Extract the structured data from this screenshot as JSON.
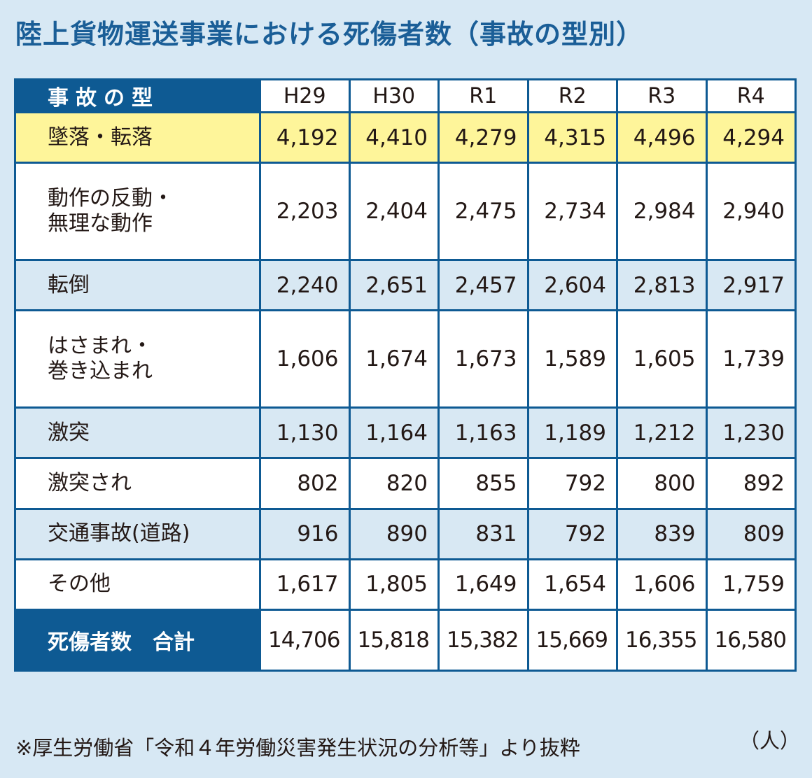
{
  "title": "陸上貨物運送事業における死傷者数（事故の型別）",
  "table": {
    "corner_header": "事故の型",
    "years": [
      "H29",
      "H30",
      "R1",
      "R2",
      "R3",
      "R4"
    ],
    "rows": [
      {
        "label": "墜落・転落",
        "values": [
          "4,192",
          "4,410",
          "4,279",
          "4,315",
          "4,496",
          "4,294"
        ],
        "highlight": true
      },
      {
        "label": "動作の反動・\n無理な動作",
        "values": [
          "2,203",
          "2,404",
          "2,475",
          "2,734",
          "2,984",
          "2,940"
        ]
      },
      {
        "label": "転倒",
        "values": [
          "2,240",
          "2,651",
          "2,457",
          "2,604",
          "2,813",
          "2,917"
        ]
      },
      {
        "label": "はさまれ・\n巻き込まれ",
        "values": [
          "1,606",
          "1,674",
          "1,673",
          "1,589",
          "1,605",
          "1,739"
        ]
      },
      {
        "label": "激突",
        "values": [
          "1,130",
          "1,164",
          "1,163",
          "1,189",
          "1,212",
          "1,230"
        ]
      },
      {
        "label": "激突され",
        "values": [
          "802",
          "820",
          "855",
          "792",
          "800",
          "892"
        ]
      },
      {
        "label": "交通事故(道路)",
        "values": [
          "916",
          "890",
          "831",
          "792",
          "839",
          "809"
        ]
      },
      {
        "label": "その他",
        "values": [
          "1,617",
          "1,805",
          "1,649",
          "1,654",
          "1,606",
          "1,759"
        ]
      }
    ],
    "total": {
      "label": "死傷者数　合計",
      "values": [
        "14,706",
        "15,818",
        "15,382",
        "15,669",
        "16,355",
        "16,580"
      ]
    }
  },
  "note": "※厚生労働省「令和４年労働災害発生状況の分析等」より抜粋",
  "unit": "（人）",
  "colors": {
    "header_blue": "#0e5a93",
    "highlight_yellow": "#fef59a",
    "stripe_blue": "#d8e8f3",
    "title_blue": "#1a5e97"
  }
}
